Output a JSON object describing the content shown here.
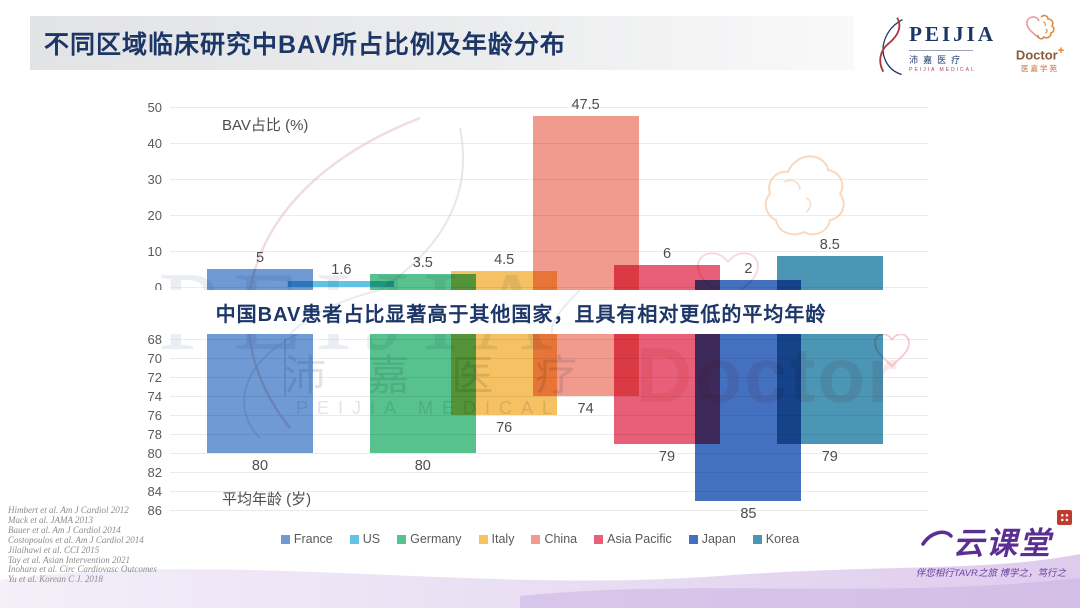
{
  "title": "不同区域临床研究中BAV所占比例及年龄分布",
  "logos": {
    "peijia": {
      "wordmark": "PEIJIA",
      "cn": "沛嘉医疗",
      "sub": "PEIJIA MEDICAL"
    },
    "doctor": {
      "wordmark": "Doctor",
      "plus": "+",
      "cn": "医嘉学苑"
    }
  },
  "watermarks": {
    "peijia": "PEIJIA",
    "cn": "沛 嘉 医 疗",
    "medical": "PEIJIA MEDICAL",
    "doctor": "Doctor"
  },
  "chart_data": {
    "type": "bar",
    "categories": [
      "France",
      "US",
      "Germany",
      "Italy",
      "China",
      "Asia Pacific",
      "Japan",
      "Korea"
    ],
    "colors": [
      "#6F9AD4",
      "#63C3E4",
      "#57C28D",
      "#F5C163",
      "#F19B8E",
      "#E75F78",
      "#4470C0",
      "#4C96B5"
    ],
    "series": [
      {
        "name": "BAV占比 (%)",
        "axis": "top",
        "values": [
          5,
          1.6,
          3.5,
          4.5,
          47.5,
          6,
          2,
          8.5
        ],
        "ylim": [
          0,
          50
        ],
        "ticks": [
          50,
          40,
          30,
          20,
          10,
          0
        ]
      },
      {
        "name": "平均年龄 (岁)",
        "axis": "bottom-inverted",
        "values": [
          80,
          null,
          80,
          76,
          74,
          79,
          85,
          79
        ],
        "ylim": [
          68,
          86
        ],
        "ticks": [
          68,
          70,
          72,
          74,
          76,
          78,
          80,
          82,
          84,
          86
        ]
      }
    ],
    "grid": true,
    "legend_position": "bottom"
  },
  "annotation": "中国BAV患者占比显著高于其他国家，且具有相对更低的平均年龄",
  "citations": [
    "Himbert et al. Am J Cardiol 2012",
    "Mack et al. JAMA 2013",
    "Bauer et al. Am J Cardiol 2014",
    "Costopoulos et al. Am J Cardiol 2014",
    "Jilaihawi et al. CCI 2015",
    "Tay et al. Asian Intervention 2021",
    "Inohara et al. Circ Cardiovasc Outcomes",
    "Yu et al. Korean C J. 2018"
  ],
  "footer": {
    "brand": "云课堂",
    "tagline": "伴您相行TAVR之旅 博学之，笃行之"
  }
}
